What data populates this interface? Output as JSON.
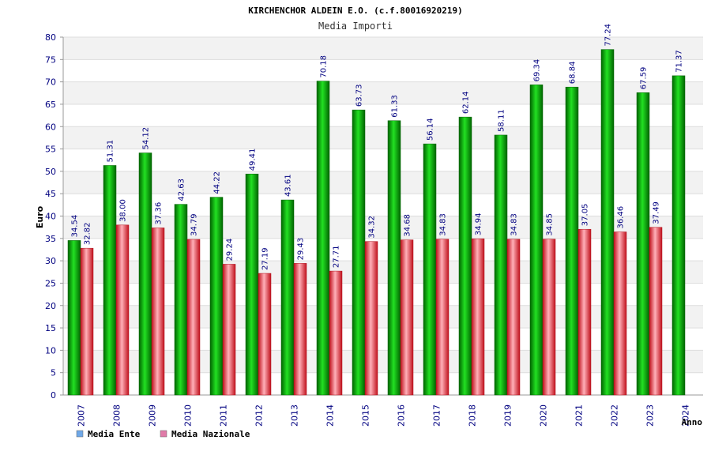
{
  "header": {
    "title": "KIRCHENCHOR ALDEIN E.O. (c.f.80016920219)",
    "subtitle": "Media Importi"
  },
  "chart_data": {
    "type": "bar",
    "title": "KIRCHENCHOR ALDEIN E.O. (c.f.80016920219)",
    "subtitle": "Media Importi",
    "xlabel": "Anno",
    "ylabel": "Euro",
    "ylim": [
      0,
      80
    ],
    "ytick_step": 5,
    "grid": "horizontal bands",
    "legend_position": "bottom-left",
    "categories": [
      "2007",
      "2008",
      "2009",
      "2010",
      "2011",
      "2012",
      "2013",
      "2014",
      "2015",
      "2016",
      "2017",
      "2018",
      "2019",
      "2020",
      "2021",
      "2022",
      "2023",
      "2024"
    ],
    "series": [
      {
        "name": "Media Ente",
        "color": "#00b400",
        "legend_color": "#6fa8e8",
        "values": [
          34.54,
          51.31,
          54.12,
          42.63,
          44.22,
          49.41,
          43.61,
          70.18,
          63.73,
          61.33,
          56.14,
          62.14,
          58.11,
          69.34,
          68.84,
          77.24,
          67.59,
          71.37
        ],
        "labels": [
          "34.54",
          "51.31",
          "54.12",
          "42.63",
          "44.22",
          "49.41",
          "43.61",
          "70.18",
          "63.73",
          "61.33",
          "56.14",
          "62.14",
          "58.11",
          "69.34",
          "68.84",
          "77.24",
          "67.59",
          "71.37"
        ]
      },
      {
        "name": "Media Nazionale",
        "color": "#e0202c",
        "legend_color": "#e07aa8",
        "values": [
          32.82,
          38.0,
          37.36,
          34.79,
          29.24,
          27.19,
          29.43,
          27.71,
          34.32,
          34.68,
          34.83,
          34.94,
          34.83,
          34.85,
          37.05,
          36.46,
          37.49,
          null
        ],
        "labels": [
          "32.82",
          "38.00",
          "37.36",
          "34.79",
          "29.24",
          "27.19",
          "29.43",
          "27.71",
          "34.32",
          "34.68",
          "34.83",
          "34.94",
          "34.83",
          "34.85",
          "37.05",
          "36.46",
          "37.49",
          null
        ]
      }
    ]
  }
}
